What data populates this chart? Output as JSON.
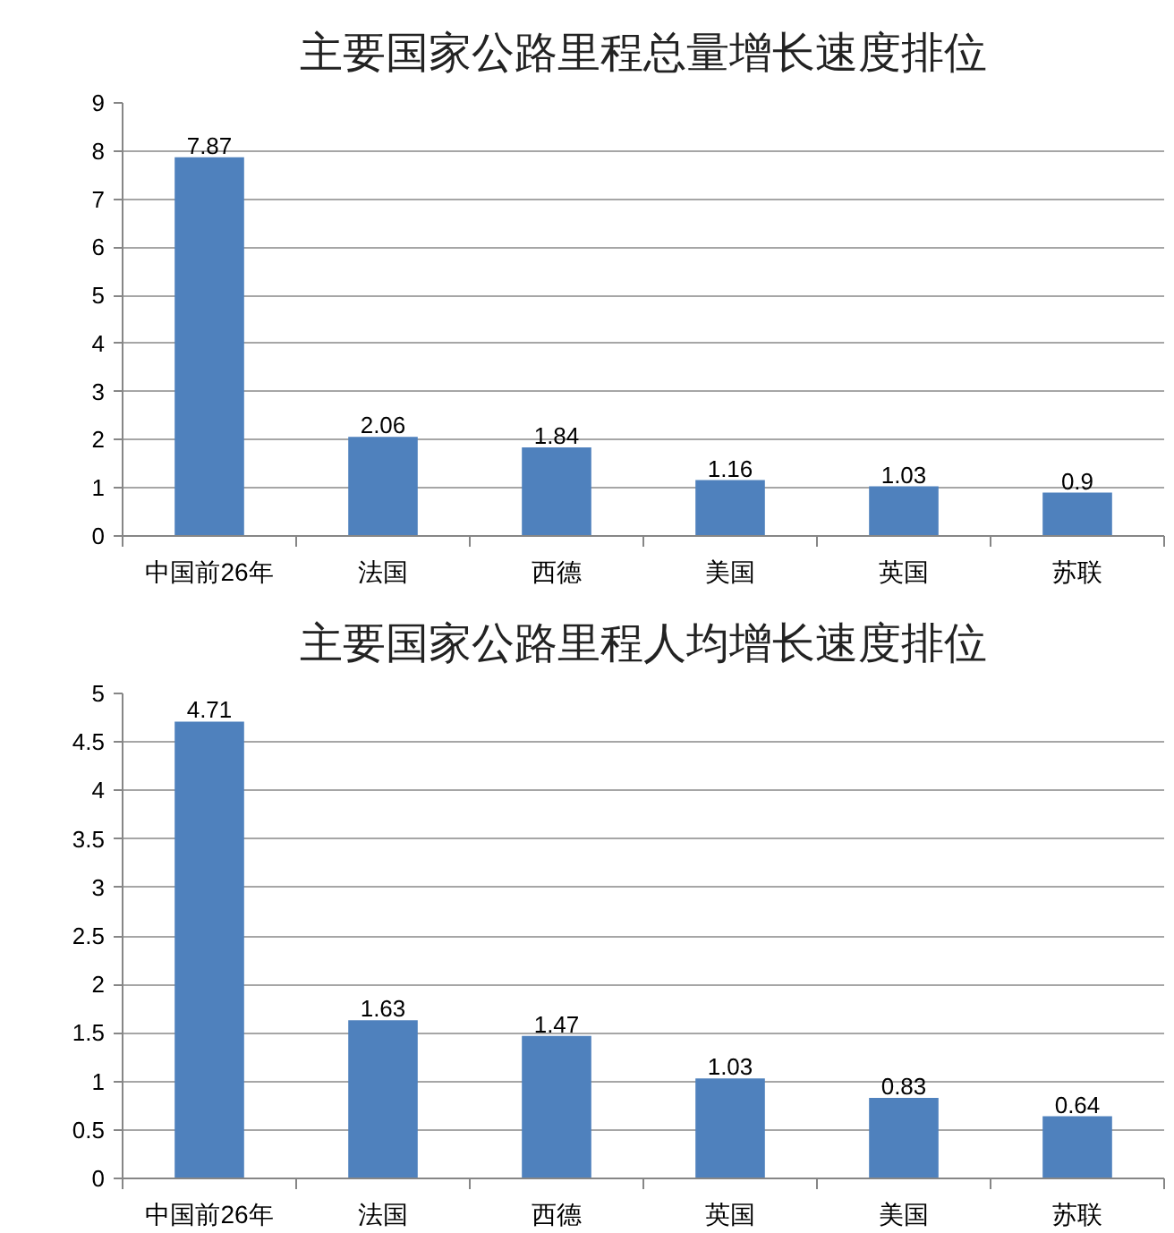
{
  "chart_data": [
    {
      "type": "bar",
      "title": "主要国家公路里程总量增长速度排位",
      "categories": [
        "中国前26年",
        "法国",
        "西德",
        "美国",
        "英国",
        "苏联"
      ],
      "values": [
        7.87,
        2.06,
        1.84,
        1.16,
        1.03,
        0.9
      ],
      "color": "#4f81bd",
      "ylim": [
        0,
        9
      ],
      "yticks": [
        0,
        1,
        2,
        3,
        4,
        5,
        6,
        7,
        8,
        9
      ],
      "grid": "y",
      "data_labels": true
    },
    {
      "type": "bar",
      "title": "主要国家公路里程人均增长速度排位",
      "categories": [
        "中国前26年",
        "法国",
        "西德",
        "英国",
        "美国",
        "苏联"
      ],
      "values": [
        4.71,
        1.63,
        1.47,
        1.03,
        0.83,
        0.64
      ],
      "color": "#4f81bd",
      "ylim": [
        0,
        5
      ],
      "yticks": [
        0,
        0.5,
        1,
        1.5,
        2,
        2.5,
        3,
        3.5,
        4,
        4.5,
        5
      ],
      "grid": "y",
      "data_labels": true
    }
  ]
}
